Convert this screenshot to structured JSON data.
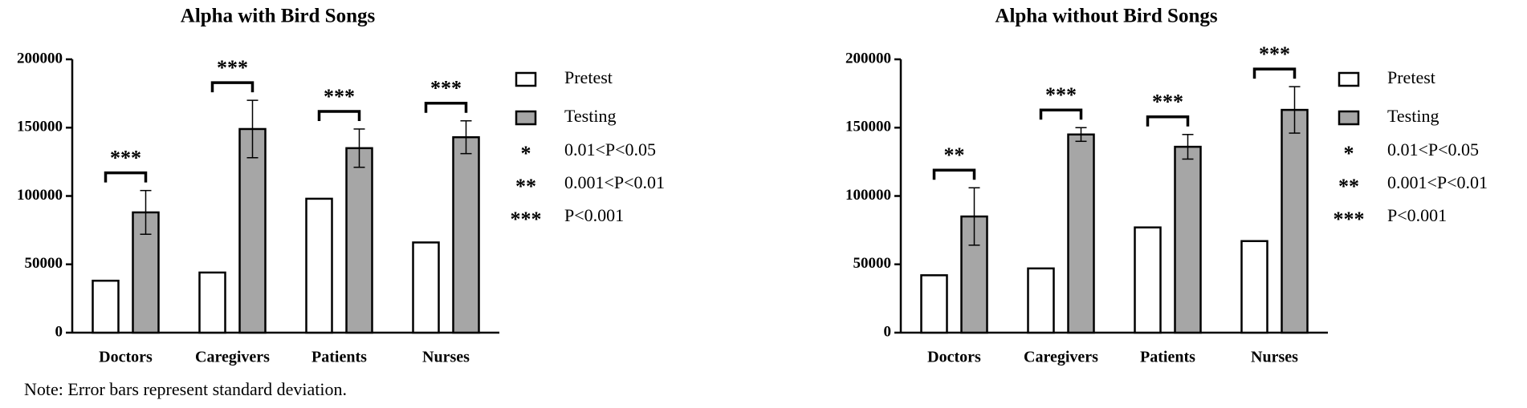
{
  "chart_data": [
    {
      "type": "bar",
      "title": "Alpha with Bird Songs",
      "categories": [
        "Doctors",
        "Caregivers",
        "Patients",
        "Nurses"
      ],
      "series": [
        {
          "name": "Pretest",
          "color": "#ffffff",
          "values": [
            38000,
            44000,
            98000,
            66000
          ]
        },
        {
          "name": "Testing",
          "color": "#a6a6a6",
          "values": [
            88000,
            149000,
            135000,
            143000
          ],
          "errors": [
            16000,
            21000,
            14000,
            12000
          ]
        }
      ],
      "significance": [
        "***",
        "***",
        "***",
        "***"
      ],
      "significance_legend": [
        {
          "symbol": "*",
          "label": "0.01<P<0.05"
        },
        {
          "symbol": "**",
          "label": "0.001<P<0.01"
        },
        {
          "symbol": "***",
          "label": "P<0.001"
        }
      ],
      "ylim": [
        0,
        200000
      ],
      "yticks": [
        0,
        50000,
        100000,
        150000,
        200000
      ]
    },
    {
      "type": "bar",
      "title": "Alpha without Bird Songs",
      "categories": [
        "Doctors",
        "Caregivers",
        "Patients",
        "Nurses"
      ],
      "series": [
        {
          "name": "Pretest",
          "color": "#ffffff",
          "values": [
            42000,
            47000,
            77000,
            67000
          ]
        },
        {
          "name": "Testing",
          "color": "#a6a6a6",
          "values": [
            85000,
            145000,
            136000,
            163000
          ],
          "errors": [
            21000,
            5000,
            9000,
            17000
          ]
        }
      ],
      "significance": [
        "**",
        "***",
        "***",
        "***"
      ],
      "significance_legend": [
        {
          "symbol": "*",
          "label": "0.01<P<0.05"
        },
        {
          "symbol": "**",
          "label": "0.001<P<0.01"
        },
        {
          "symbol": "***",
          "label": "P<0.001"
        }
      ],
      "ylim": [
        0,
        200000
      ],
      "yticks": [
        0,
        50000,
        100000,
        150000,
        200000
      ]
    }
  ],
  "note": "Note: Error bars represent standard deviation."
}
